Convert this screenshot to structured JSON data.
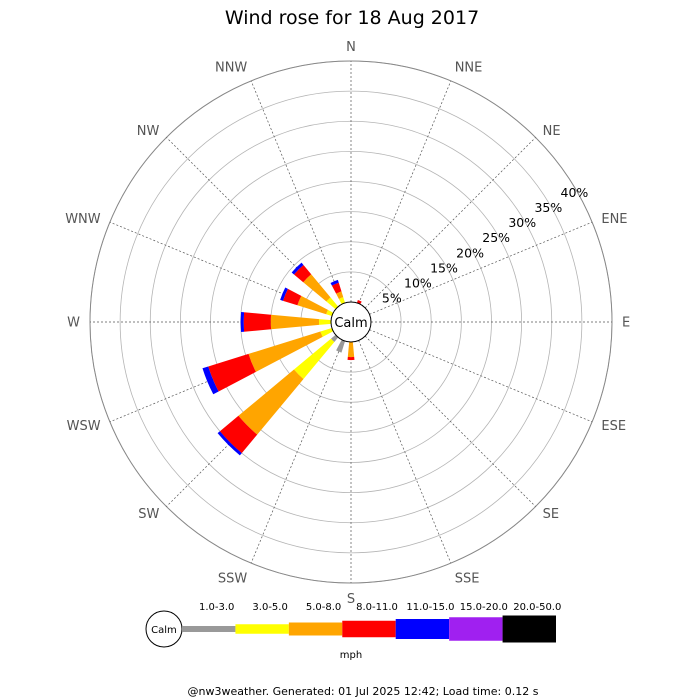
{
  "chart_data": {
    "type": "wind_rose",
    "title": "Wind rose for 18 Aug 2017",
    "center_label": "Calm",
    "directions": [
      "N",
      "NNE",
      "NE",
      "ENE",
      "E",
      "ESE",
      "SE",
      "SSE",
      "S",
      "SSW",
      "SW",
      "WSW",
      "W",
      "WNW",
      "NW",
      "NNW"
    ],
    "radial_ticks": [
      "5%",
      "10%",
      "15%",
      "20%",
      "25%",
      "30%",
      "35%",
      "40%"
    ],
    "radial_values": [
      5,
      10,
      15,
      20,
      25,
      30,
      35,
      40
    ],
    "rmax": 40,
    "speed_bins": [
      {
        "label": "1.0-3.0",
        "color": "#999999"
      },
      {
        "label": "3.0-5.0",
        "color": "#ffff00"
      },
      {
        "label": "5.0-8.0",
        "color": "#ffa500"
      },
      {
        "label": "8.0-11.0",
        "color": "#ff0000"
      },
      {
        "label": "11.0-15.0",
        "color": "#0000ff"
      },
      {
        "label": "15.0-20.0",
        "color": "#a020f0"
      },
      {
        "label": "20.0-50.0",
        "color": "#000000"
      }
    ],
    "speed_unit": "mph",
    "series": [
      {
        "direction": "NNE",
        "values": [
          0,
          0,
          0,
          0.5,
          0,
          0,
          0
        ]
      },
      {
        "direction": "N",
        "values": [
          0,
          0,
          0,
          0,
          0,
          0,
          0
        ]
      },
      {
        "direction": "NNW",
        "values": [
          0,
          1,
          1,
          1.5,
          0.5,
          0,
          0
        ]
      },
      {
        "direction": "NW",
        "values": [
          0,
          2,
          5,
          2,
          0.5,
          0,
          0
        ]
      },
      {
        "direction": "WNW",
        "values": [
          0,
          1,
          5,
          2.5,
          0.5,
          0,
          0
        ]
      },
      {
        "direction": "W",
        "values": [
          0,
          2,
          8,
          4.5,
          0.5,
          0,
          0
        ]
      },
      {
        "direction": "WSW",
        "values": [
          0,
          2,
          12.5,
          7,
          1,
          0,
          0
        ]
      },
      {
        "direction": "SW",
        "values": [
          1,
          8,
          12,
          4,
          0.5,
          0,
          0
        ]
      },
      {
        "direction": "SSW",
        "values": [
          2,
          0,
          0,
          0,
          0,
          0,
          0
        ]
      },
      {
        "direction": "S",
        "values": [
          0,
          0,
          2.5,
          0.5,
          0,
          0,
          0
        ]
      }
    ]
  },
  "footer": "@nw3weather. Generated: 01 Jul 2025 12:42; Load time: 0.12 s"
}
